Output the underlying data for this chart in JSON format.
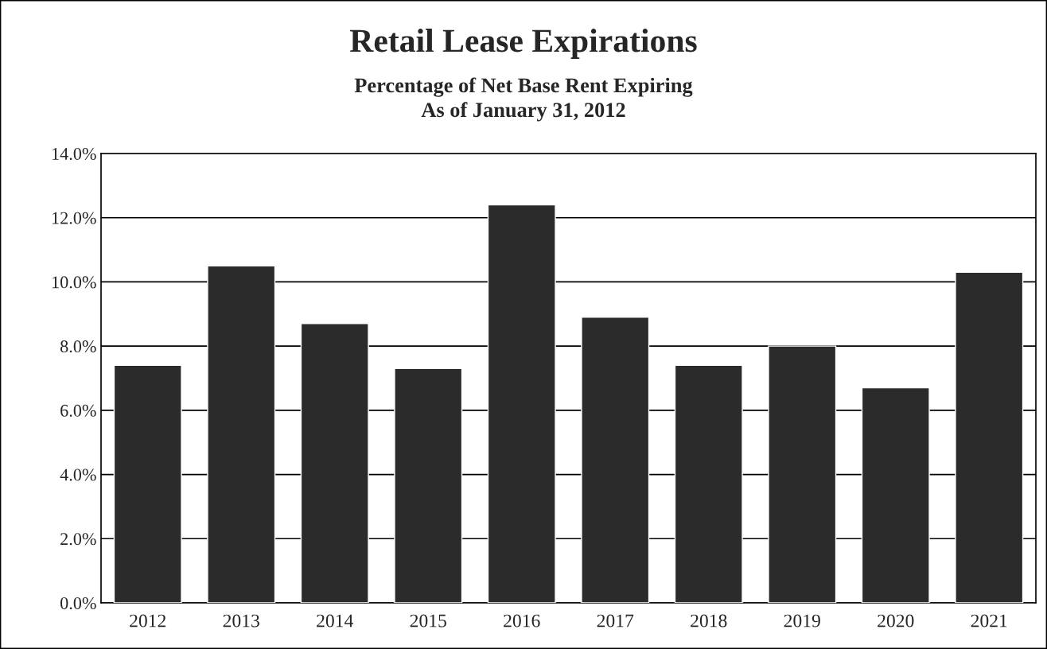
{
  "chart_data": {
    "type": "bar",
    "title": "Retail Lease Expirations",
    "subtitle": "Percentage of Net Base Rent Expiring\nAs of January 31, 2012",
    "categories": [
      "2012",
      "2013",
      "2014",
      "2015",
      "2016",
      "2017",
      "2018",
      "2019",
      "2020",
      "2021"
    ],
    "values": [
      7.4,
      10.5,
      8.7,
      7.3,
      12.4,
      8.9,
      7.4,
      8.0,
      6.7,
      10.3
    ],
    "color": "#2b2b2b",
    "ylim": [
      0,
      14
    ],
    "yticks": [
      {
        "value": 0,
        "label": "0.0%"
      },
      {
        "value": 2,
        "label": "2.0%"
      },
      {
        "value": 4,
        "label": "4.0%"
      },
      {
        "value": 6,
        "label": "6.0%"
      },
      {
        "value": 8,
        "label": "8.0%"
      },
      {
        "value": 10,
        "label": "10.0%"
      },
      {
        "value": 12,
        "label": "12.0%"
      },
      {
        "value": 14,
        "label": "14.0%"
      }
    ],
    "grid": "y",
    "legend": false
  }
}
